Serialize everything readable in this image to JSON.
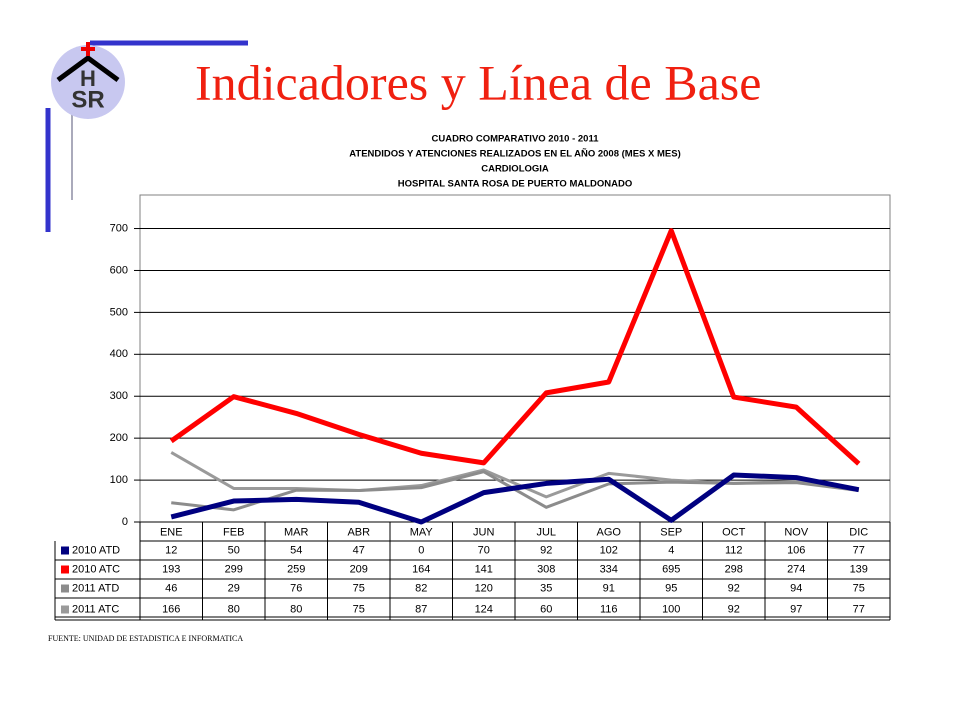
{
  "slide_title": "Indicadores y Línea de Base",
  "logo": {
    "top": "H",
    "bottom": "SR"
  },
  "source": "FUENTE: UNIDAD DE ESTADISTICA E INFORMATICA",
  "chart_data": {
    "type": "line",
    "title": [
      "CUADRO COMPARATIVO 2010 - 2011",
      "ATENDIDOS Y ATENCIONES  REALIZADOS EN  EL AÑO 2008 (MES X MES)",
      "CARDIOLOGIA",
      "HOSPITAL SANTA ROSA DE PUERTO MALDONADO"
    ],
    "categories": [
      "ENE",
      "FEB",
      "MAR",
      "ABR",
      "MAY",
      "JUN",
      "JUL",
      "AGO",
      "SEP",
      "OCT",
      "NOV",
      "DIC"
    ],
    "series": [
      {
        "name": "2010 ATD",
        "color": "#000080",
        "values": [
          12,
          50,
          54,
          47,
          0,
          70,
          92,
          102,
          4,
          112,
          106,
          77
        ]
      },
      {
        "name": "2010 ATC",
        "color": "#ff0000",
        "values": [
          193,
          299,
          259,
          209,
          164,
          141,
          308,
          334,
          695,
          298,
          274,
          139
        ]
      },
      {
        "name": "2011 ATD",
        "color": "#8c8c8c",
        "values": [
          46,
          29,
          76,
          75,
          82,
          120,
          35,
          91,
          95,
          92,
          94,
          75
        ]
      },
      {
        "name": "2011 ATC",
        "color": "#9a9a9a",
        "values": [
          166,
          80,
          80,
          75,
          87,
          124,
          60,
          116,
          100,
          92,
          97,
          77
        ]
      }
    ],
    "ylim": [
      0,
      780
    ],
    "yticks": [
      0,
      100,
      200,
      300,
      400,
      500,
      600,
      700
    ],
    "grid": true
  }
}
